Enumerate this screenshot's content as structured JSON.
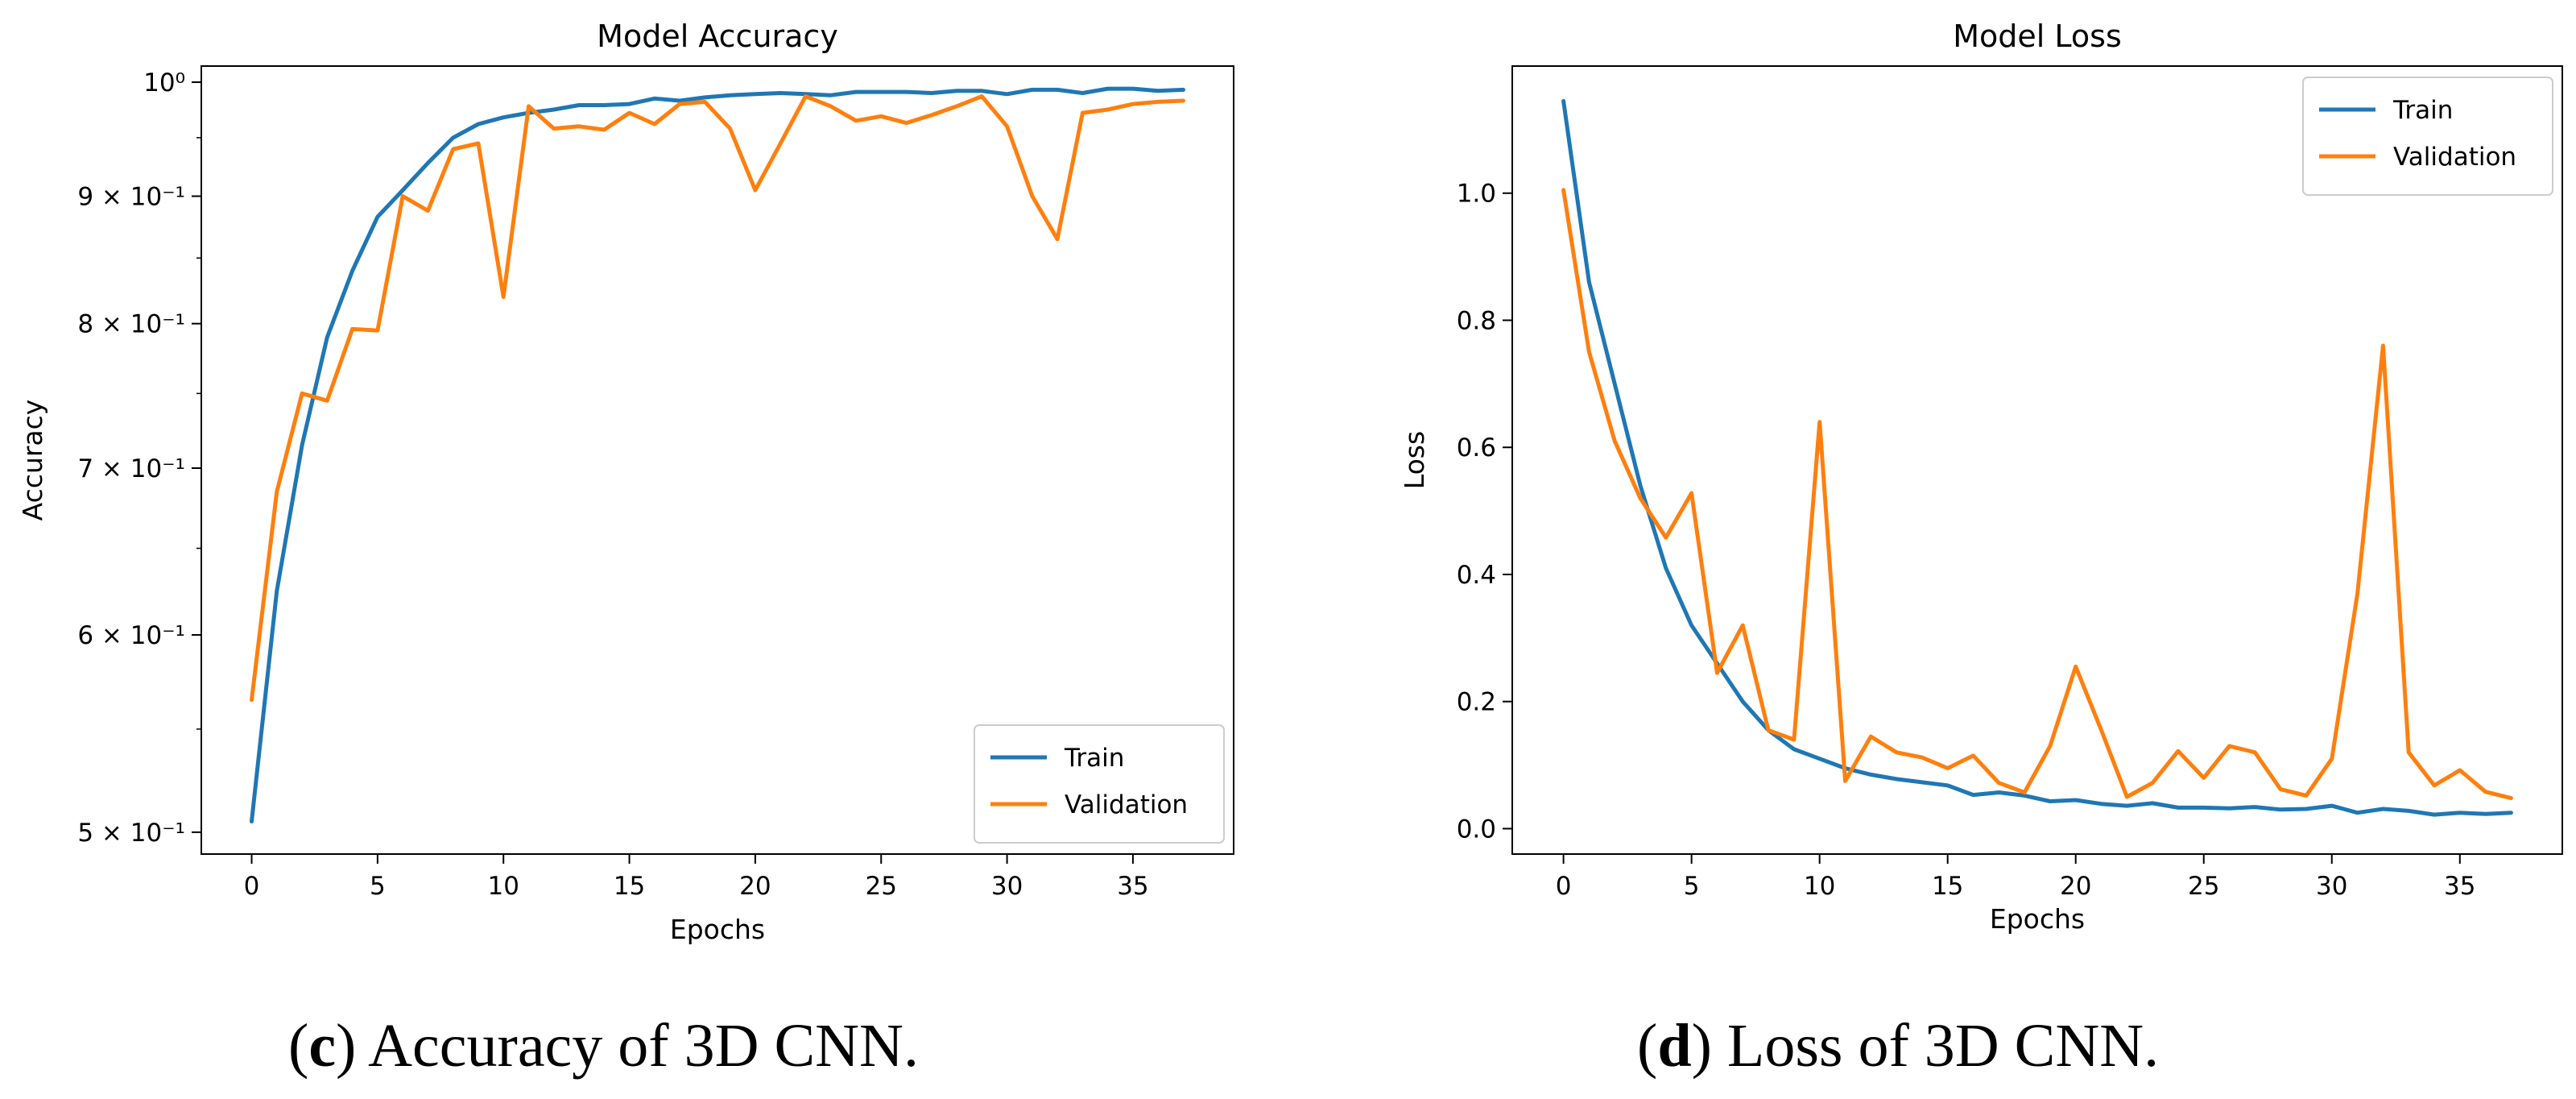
{
  "chart_data": [
    {
      "type": "line",
      "title": "Model Accuracy",
      "xlabel": "Epochs",
      "ylabel": "Accuracy",
      "yscale": "log",
      "xlim": [
        -2,
        39
      ],
      "ylim": [
        0.49,
        1.015
      ],
      "xticks": [
        0,
        5,
        10,
        15,
        20,
        25,
        30,
        35
      ],
      "xtick_labels": [
        "0",
        "5",
        "10",
        "15",
        "20",
        "25",
        "30",
        "35"
      ],
      "yticks": [
        0.5,
        0.6,
        0.7,
        0.8,
        0.9,
        1.0
      ],
      "ytick_labels": [
        "5 × 10⁻¹",
        "6 × 10⁻¹",
        "7 × 10⁻¹",
        "8 × 10⁻¹",
        "9 × 10⁻¹",
        "10⁰"
      ],
      "legend_position": "lower-right",
      "colors": [
        "#1f77b4",
        "#ff7f0e"
      ],
      "x": [
        0,
        1,
        2,
        3,
        4,
        5,
        6,
        7,
        8,
        9,
        10,
        11,
        12,
        13,
        14,
        15,
        16,
        17,
        18,
        19,
        20,
        21,
        22,
        23,
        24,
        25,
        26,
        27,
        28,
        29,
        30,
        31,
        32,
        33,
        34,
        35,
        36,
        37
      ],
      "series": [
        {
          "name": "Train",
          "values": [
            0.505,
            0.625,
            0.715,
            0.79,
            0.84,
            0.883,
            0.905,
            0.928,
            0.95,
            0.962,
            0.968,
            0.972,
            0.975,
            0.979,
            0.979,
            0.98,
            0.985,
            0.983,
            0.986,
            0.988,
            0.989,
            0.99,
            0.989,
            0.988,
            0.991,
            0.991,
            0.991,
            0.99,
            0.992,
            0.992,
            0.989,
            0.993,
            0.993,
            0.99,
            0.994,
            0.994,
            0.992,
            0.993
          ]
        },
        {
          "name": "Validation",
          "values": [
            0.565,
            0.685,
            0.75,
            0.745,
            0.796,
            0.795,
            0.9,
            0.888,
            0.94,
            0.945,
            0.82,
            0.978,
            0.958,
            0.96,
            0.957,
            0.972,
            0.962,
            0.98,
            0.982,
            0.958,
            0.905,
            0.945,
            0.987,
            0.978,
            0.965,
            0.969,
            0.963,
            0.97,
            0.978,
            0.987,
            0.96,
            0.9,
            0.865,
            0.972,
            0.975,
            0.98,
            0.982,
            0.983
          ]
        }
      ]
    },
    {
      "type": "line",
      "title": "Model Loss",
      "xlabel": "Epochs",
      "ylabel": "Loss",
      "xlim": [
        -2,
        39
      ],
      "ylim": [
        -0.04,
        1.2
      ],
      "xticks": [
        0,
        5,
        10,
        15,
        20,
        25,
        30,
        35
      ],
      "xtick_labels": [
        "0",
        "5",
        "10",
        "15",
        "20",
        "25",
        "30",
        "35"
      ],
      "yticks": [
        0.0,
        0.2,
        0.4,
        0.6,
        0.8,
        1.0
      ],
      "ytick_labels": [
        "0.0",
        "0.2",
        "0.4",
        "0.6",
        "0.8",
        "1.0"
      ],
      "legend_position": "upper-right",
      "colors": [
        "#1f77b4",
        "#ff7f0e"
      ],
      "x": [
        0,
        1,
        2,
        3,
        4,
        5,
        6,
        7,
        8,
        9,
        10,
        11,
        12,
        13,
        14,
        15,
        16,
        17,
        18,
        19,
        20,
        21,
        22,
        23,
        24,
        25,
        26,
        27,
        28,
        29,
        30,
        31,
        32,
        33,
        34,
        35,
        36,
        37
      ],
      "series": [
        {
          "name": "Train",
          "values": [
            1.145,
            0.86,
            0.7,
            0.54,
            0.41,
            0.32,
            0.26,
            0.2,
            0.155,
            0.125,
            0.11,
            0.095,
            0.085,
            0.078,
            0.073,
            0.068,
            0.053,
            0.057,
            0.052,
            0.043,
            0.045,
            0.039,
            0.036,
            0.04,
            0.033,
            0.033,
            0.032,
            0.034,
            0.03,
            0.031,
            0.036,
            0.025,
            0.031,
            0.028,
            0.022,
            0.025,
            0.023,
            0.025
          ]
        },
        {
          "name": "Validation",
          "values": [
            1.005,
            0.75,
            0.61,
            0.52,
            0.458,
            0.528,
            0.245,
            0.32,
            0.155,
            0.14,
            0.64,
            0.075,
            0.145,
            0.12,
            0.112,
            0.095,
            0.115,
            0.072,
            0.057,
            0.13,
            0.255,
            0.155,
            0.05,
            0.072,
            0.122,
            0.08,
            0.13,
            0.12,
            0.062,
            0.052,
            0.11,
            0.37,
            0.76,
            0.12,
            0.068,
            0.092,
            0.058,
            0.048
          ]
        }
      ]
    }
  ],
  "captions": [
    {
      "letter": "c",
      "text": ") Accuracy of 3D CNN."
    },
    {
      "letter": "d",
      "text": ") Loss of 3D CNN."
    }
  ]
}
